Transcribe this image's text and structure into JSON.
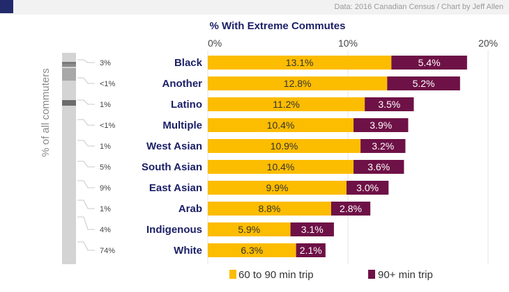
{
  "source_credit": "Data: 2016 Canadian Census / Chart by Jeff Allen",
  "colors": {
    "series_60_90": "#fcbc00",
    "series_90_plus": "#6e1146",
    "label_text": "#1b1f66",
    "axis_text": "#444444"
  },
  "chart_data": {
    "type": "bar",
    "orientation": "horizontal",
    "stacked": true,
    "title": "% With Extreme Commutes",
    "side_label": "% of all commuters",
    "xlim": [
      0,
      20
    ],
    "x_ticks": [
      "0%",
      "10%",
      "20%"
    ],
    "x_tick_values": [
      0,
      10,
      20
    ],
    "grid": true,
    "legend_position": "bottom",
    "categories": [
      "Black",
      "Another",
      "Latino",
      "Multiple",
      "West Asian",
      "South Asian",
      "East Asian",
      "Arab",
      "Indigenous",
      "White"
    ],
    "share_of_commuters": [
      "3%",
      "<1%",
      "1%",
      "<1%",
      "1%",
      "5%",
      "9%",
      "1%",
      "4%",
      "74%"
    ],
    "series": [
      {
        "name": "60 to 90 min trip",
        "values": [
          13.1,
          12.8,
          11.2,
          10.4,
          10.9,
          10.4,
          9.9,
          8.8,
          5.9,
          6.3
        ],
        "labels": [
          "13.1%",
          "12.8%",
          "11.2%",
          "10.4%",
          "10.9%",
          "10.4%",
          "9.9%",
          "8.8%",
          "5.9%",
          "6.3%"
        ]
      },
      {
        "name": "90+ min trip",
        "values": [
          5.4,
          5.2,
          3.5,
          3.9,
          3.2,
          3.6,
          3.0,
          2.8,
          3.1,
          2.1
        ],
        "labels": [
          "5.4%",
          "5.2%",
          "3.5%",
          "3.9%",
          "3.2%",
          "3.6%",
          "3.0%",
          "2.8%",
          "3.1%",
          "2.1%"
        ]
      }
    ]
  }
}
